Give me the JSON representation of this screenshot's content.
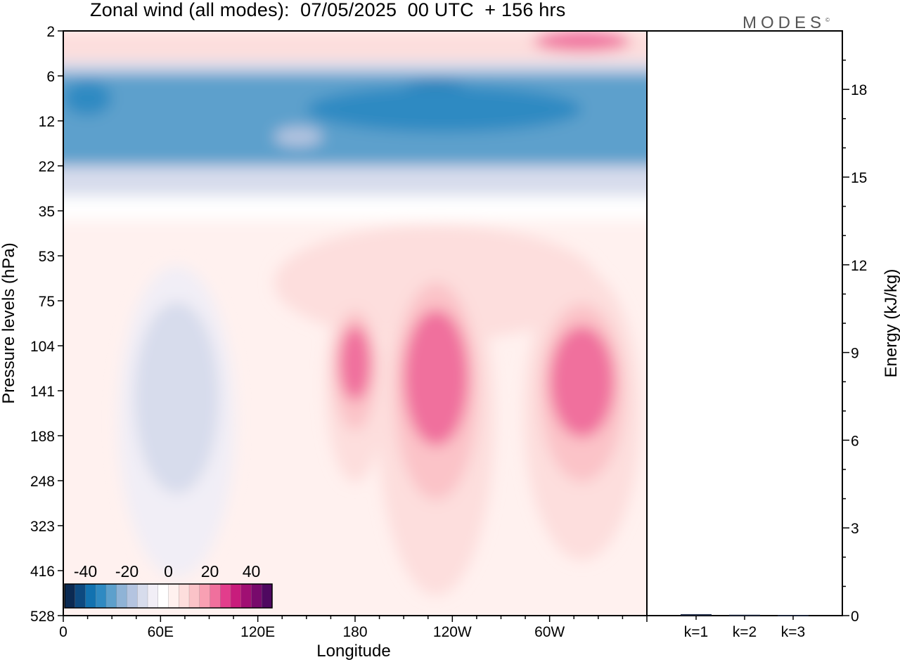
{
  "title": "Zonal wind (all modes):  07/05/2025  00 UTC  + 156 hrs",
  "brand": "MODES",
  "brand_mark": "©",
  "chart_data": [
    {
      "type": "heatmap",
      "title": "Zonal wind (all modes):  07/05/2025  00 UTC  + 156 hrs",
      "xlabel": "Longitude",
      "ylabel": "Pressure levels (hPa)",
      "x_ticks": [
        "0",
        "60E",
        "120E",
        "180",
        "120W",
        "60W"
      ],
      "x_tick_degrees": [
        0,
        60,
        120,
        180,
        240,
        300
      ],
      "xlim": [
        0,
        360
      ],
      "y_ticks": [
        "2",
        "6",
        "12",
        "22",
        "35",
        "53",
        "75",
        "104",
        "141",
        "188",
        "248",
        "323",
        "416",
        "528"
      ],
      "y_scale": "pressure levels (top = 2 hPa, bottom = 528 hPa)",
      "colorbar": {
        "tick_labels": [
          "-40",
          "-20",
          "0",
          "20",
          "40"
        ],
        "tick_values": [
          -40,
          -20,
          0,
          20,
          40
        ],
        "bins": [
          -50,
          -45,
          -40,
          -35,
          -30,
          -25,
          -20,
          -15,
          -10,
          -5,
          0,
          5,
          10,
          15,
          20,
          25,
          30,
          35,
          40,
          45,
          50
        ],
        "colors": [
          "#0b2a52",
          "#0d4a80",
          "#1272b0",
          "#2f8ac2",
          "#5da0cc",
          "#8fb3d6",
          "#b4c4e0",
          "#d7dcec",
          "#f1eef6",
          "#ffffff",
          "#fff1ef",
          "#fddedd",
          "#fbc3c8",
          "#f8a0b3",
          "#f0709d",
          "#e23d8c",
          "#c81c7c",
          "#a00f73",
          "#780a6c",
          "#4f0860"
        ]
      },
      "features": [
        {
          "name": "stratospheric easterly jet",
          "level_range_hPa": [
            5,
            20
          ],
          "value_approx": -35
        },
        {
          "name": "upper westerlies",
          "level_range_hPa": [
            2,
            4
          ],
          "value_approx": 15
        },
        {
          "name": "easterly cell",
          "lon_range": [
            50,
            90
          ],
          "level_range_hPa": [
            90,
            200
          ],
          "value_approx": -15
        },
        {
          "name": "westerly cell",
          "lon_range": [
            170,
            190
          ],
          "level_range_hPa": [
            90,
            150
          ],
          "value_approx": 20
        },
        {
          "name": "westerly cell",
          "lon_range": [
            210,
            250
          ],
          "level_range_hPa": [
            80,
            200
          ],
          "value_approx": 20
        },
        {
          "name": "westerly cell",
          "lon_range": [
            300,
            340
          ],
          "level_range_hPa": [
            90,
            190
          ],
          "value_approx": 20
        }
      ]
    },
    {
      "type": "bar",
      "ylabel": "Energy (kJ/kg)",
      "categories": [
        "k=1",
        "k=2",
        "k=3"
      ],
      "values": [
        0.05,
        0.03,
        0.02
      ],
      "ylim": [
        0,
        20
      ],
      "y_ticks": [
        0,
        3,
        6,
        9,
        12,
        15,
        18
      ]
    }
  ]
}
